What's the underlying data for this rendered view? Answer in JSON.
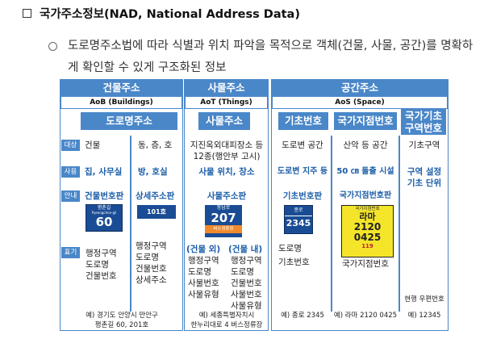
{
  "title": "국가주소정보(NAD, National Address Data)",
  "bullet": "도로명주소법에 따라 식별과 위치 파악을 목적으로 객체(건물, 사물, 공간)를 명확하게 확인할 수 있게 구조화된 정보",
  "cols": {
    "building": {
      "header": "건물주소",
      "sub": "AoB (Buildings)",
      "name": "도로명주소"
    },
    "thing": {
      "header": "사물주소",
      "sub": "AoT (Things)",
      "name": "사물주소"
    },
    "space": {
      "header": "공간주소",
      "sub": "AoS (Space)",
      "name1": "기초번호",
      "name2": "국가지점번호",
      "name3": "국가기초 구역번호"
    }
  },
  "labels": {
    "target": "대상",
    "use": "사용",
    "guide": "안내",
    "notation": "표기"
  },
  "building": {
    "target_left": "건물",
    "target_right": "동, 층, 호",
    "use_left": "집, 사무실",
    "use_right": "방, 호실",
    "guide_left": "건물번호판",
    "guide_right": "상세주소판",
    "sign60_small": "평촌길",
    "sign60_sub": "Pyeongchon-gil",
    "sign60_num": "60",
    "sign101": "101호",
    "notation_left": "행정구역\n도로명\n건물번호",
    "notation_right": "행정구역\n도로명\n건물번호\n상세주소",
    "eg": "예) 경기도 안양시 만안구\n평촌길 60, 201호"
  },
  "thing": {
    "target": "지진옥외대피장소 등\n12종(행안부 고시)",
    "use": "사물 위치, 장소",
    "guide": "사물주소판",
    "sign_top": "동남로",
    "sign_num": "207",
    "sign_bot": "버스정류장",
    "out_label": "(건물 외)",
    "out_list": "행정구역\n도로명\n사물번호\n사물유형",
    "in_label": "(건물 내)",
    "in_list": "행정구역\n도로명\n건물번호\n사물번호\n사물유형",
    "eg": "예) 세종특별자치시\n한누리대로 4 버스정류장"
  },
  "space": {
    "basic_target": "도로변 공간",
    "basic_use": "도로변 지주 등",
    "basic_guide": "기초번호판",
    "basic_sign_top": "종로",
    "basic_sign_num": "2345",
    "basic_notation": "도로명\n기초번호",
    "basic_eg": "예) 종로 2345",
    "nat_target": "산악 등 공간",
    "nat_use": "50 ㎝ 돌출 시설",
    "nat_guide": "국가지점번호판",
    "nat_sign_top": "국가지점번호",
    "nat_sign_ra": "라마",
    "nat_sign_n1": "2120",
    "nat_sign_n2": "0425",
    "nat_sign_tel": "119",
    "nat_notation": "국가지점번호",
    "nat_eg": "예) 라마 2120 0425",
    "zone_target": "기초구역",
    "zone_use": "구역 설정\n기초 단위",
    "zone_notation": "현행 우편번호",
    "zone_eg": "예) 12345"
  }
}
